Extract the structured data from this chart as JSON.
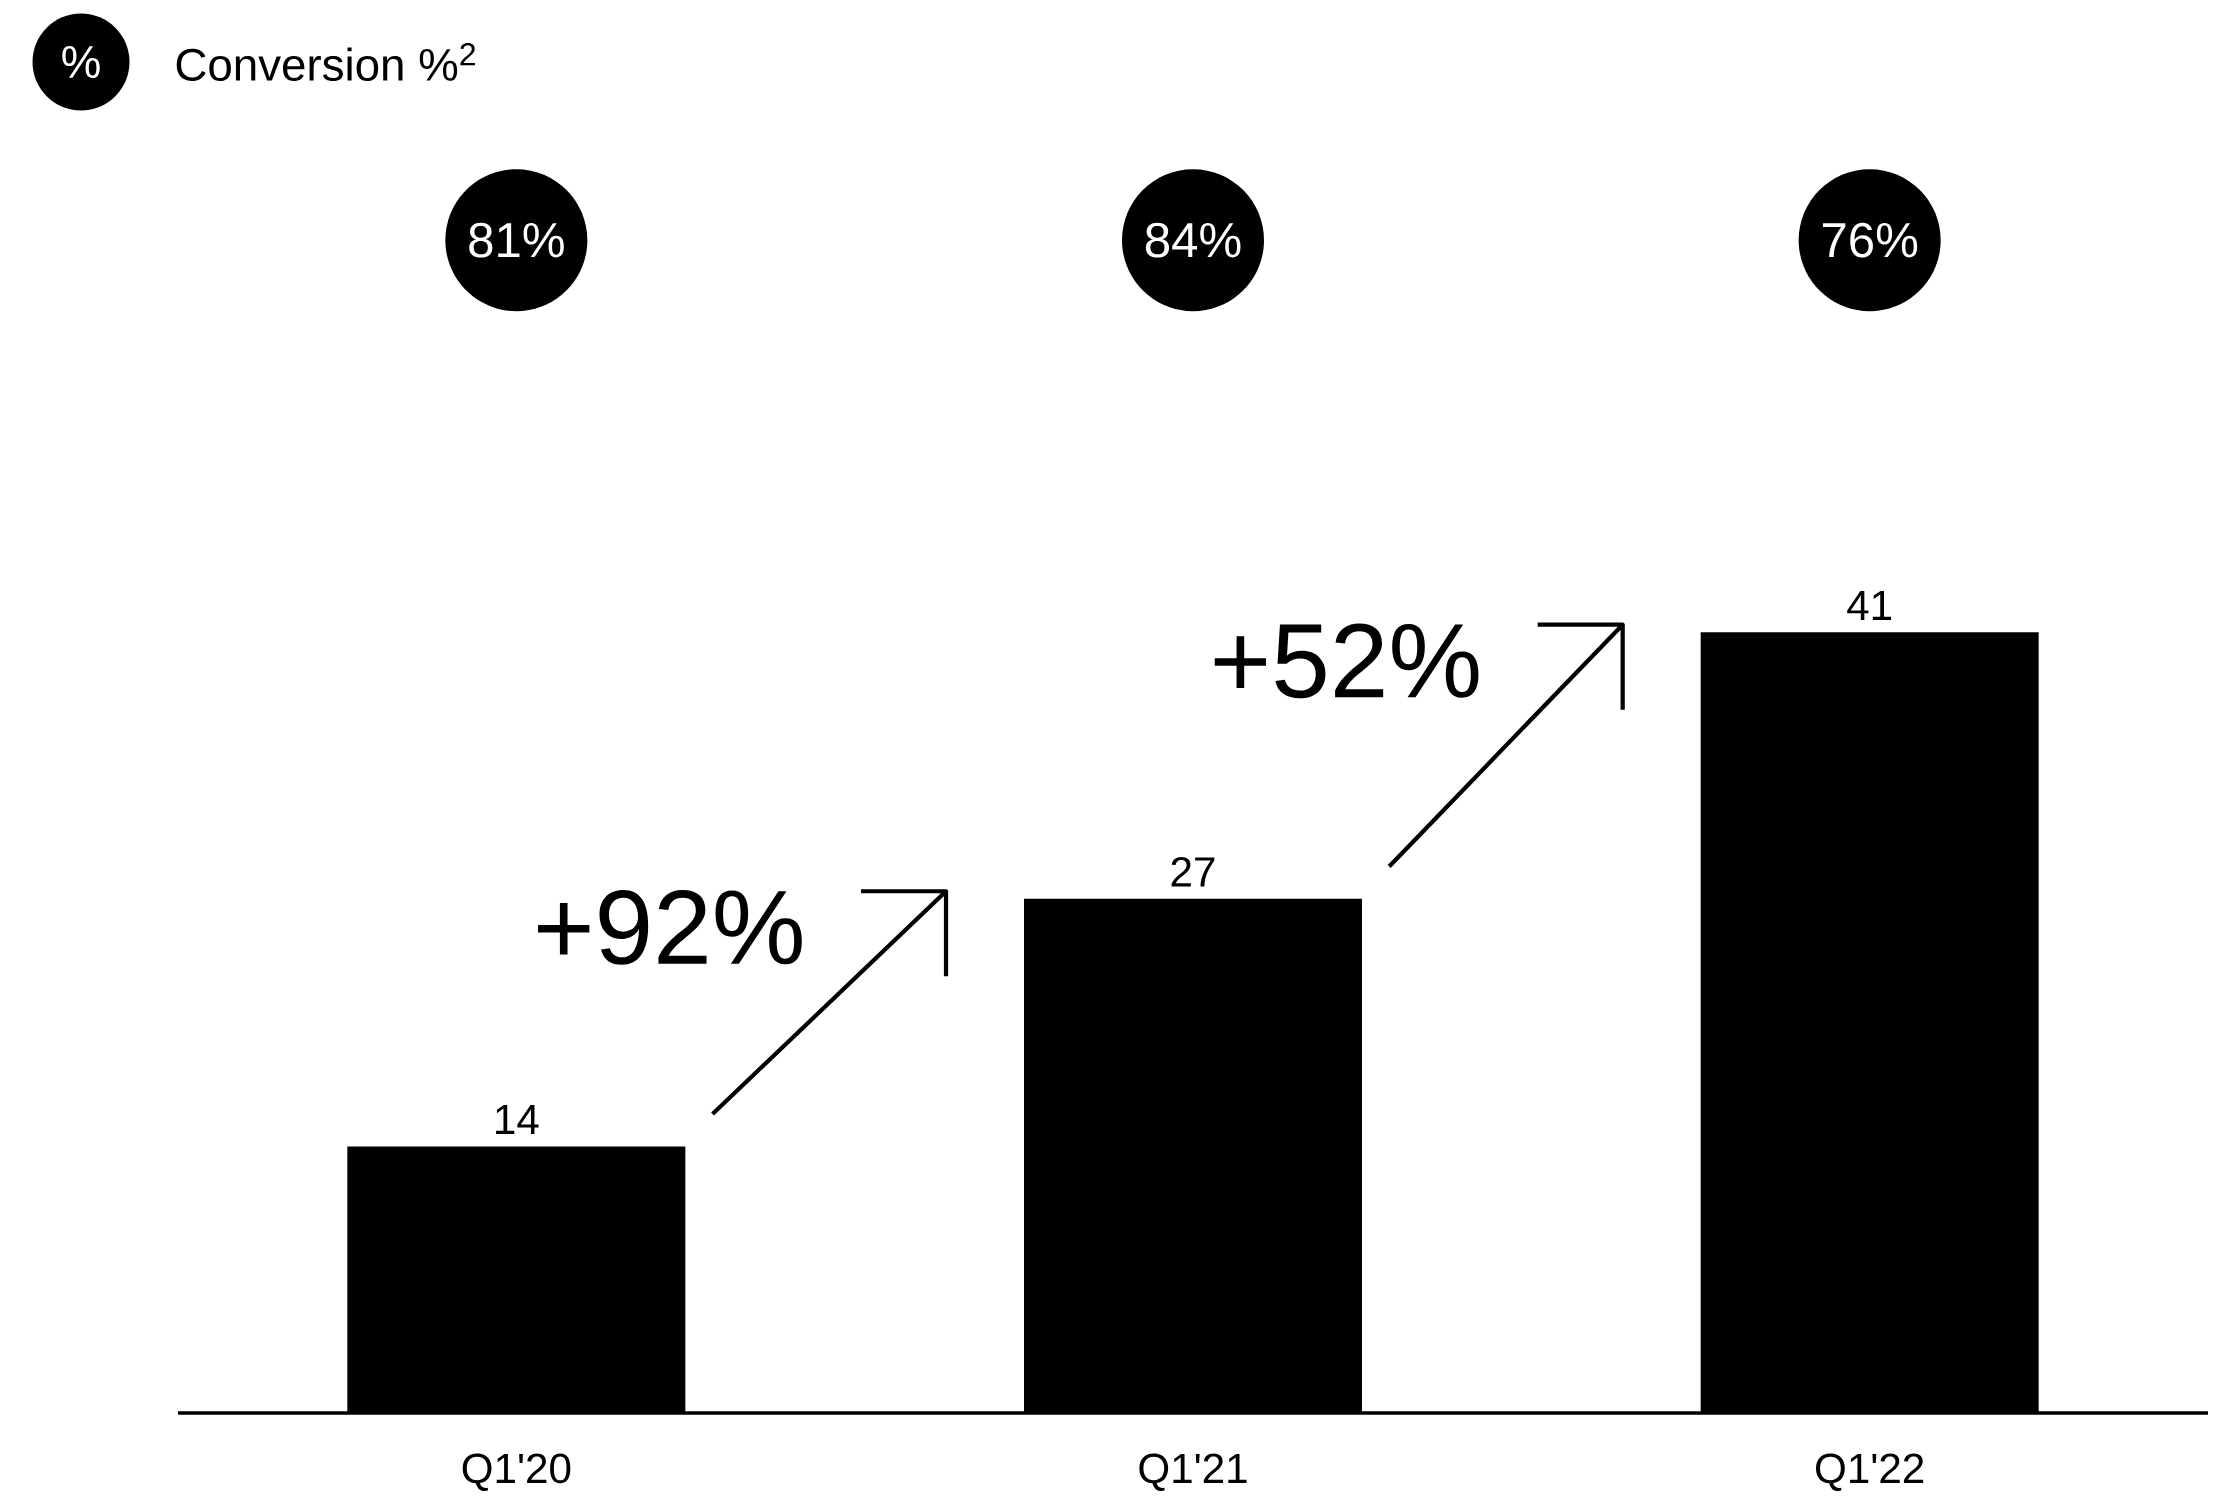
{
  "chart_data": {
    "type": "bar",
    "title": "Conversion %$^{2}$",
    "categories": [
      "Q1'20",
      "Q1'21",
      "Q1'22"
    ],
    "values": [
      14,
      27,
      41
    ],
    "color": "#000000",
    "data_labels": true,
    "annotations": [
      "%",
      "81%",
      "84%",
      "76%",
      "+92%",
      "+52%"
    ]
  }
}
